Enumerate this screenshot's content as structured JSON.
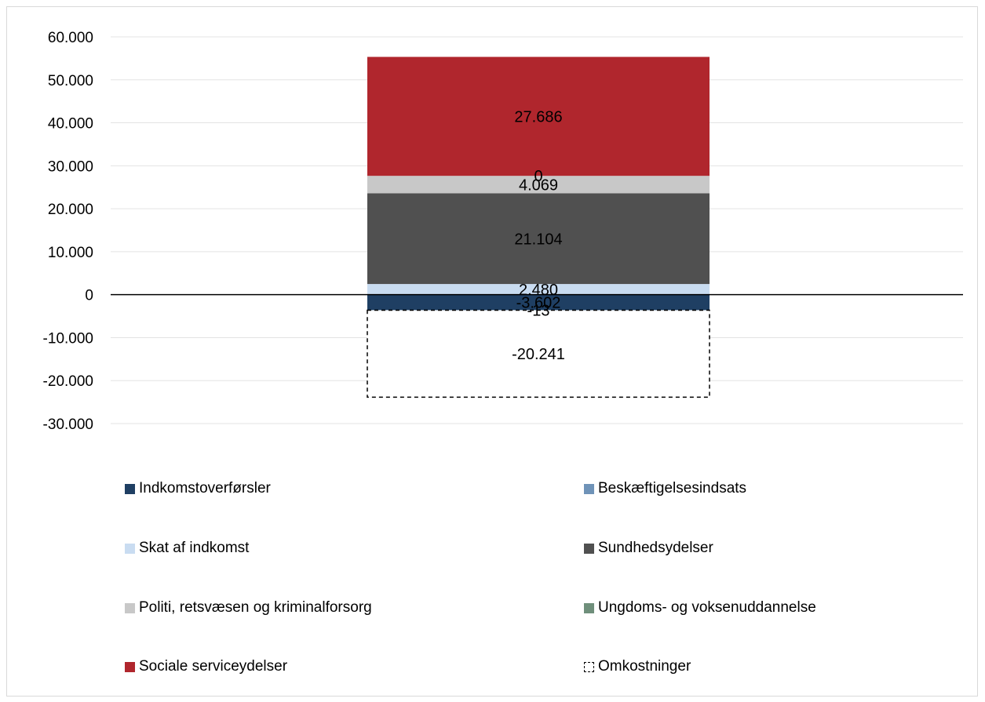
{
  "chart_data": {
    "type": "bar",
    "stacked": true,
    "categories": [
      ""
    ],
    "title": "",
    "xlabel": "",
    "ylabel": "",
    "ylim": [
      -30000,
      60000
    ],
    "yticks": [
      60000,
      50000,
      40000,
      30000,
      20000,
      10000,
      0,
      -10000,
      -20000,
      -30000
    ],
    "ytick_labels": [
      "60.000",
      "50.000",
      "40.000",
      "30.000",
      "20.000",
      "10.000",
      "0",
      "-10.000",
      "-20.000",
      "-30.000"
    ],
    "grid": true,
    "legend_position": "bottom",
    "series": [
      {
        "name": "Indkomstoverførsler",
        "values": [
          -3602
        ],
        "label": "-3.602",
        "color": "#1f3f63"
      },
      {
        "name": "Beskæftigelsesindsats",
        "values": [
          -13
        ],
        "label": "-13",
        "color": "#6f93b8"
      },
      {
        "name": "Skat af indkomst",
        "values": [
          2480
        ],
        "label": "2.480",
        "color": "#c9dcf1"
      },
      {
        "name": "Sundhedsydelser",
        "values": [
          21104
        ],
        "label": "21.104",
        "color": "#505050"
      },
      {
        "name": "Politi, retsvæsen og kriminalforsorg",
        "values": [
          4069
        ],
        "label": "4.069",
        "color": "#c8c8c8"
      },
      {
        "name": "Ungdoms- og voksenuddannelse",
        "values": [
          0
        ],
        "label": "0",
        "color": "#6f8f7b"
      },
      {
        "name": "Sociale serviceydelser",
        "values": [
          27686
        ],
        "label": "27.686",
        "color": "#b0262d"
      },
      {
        "name": "Omkostninger",
        "values": [
          -20241
        ],
        "label": "-20.241",
        "color": "#ffffff",
        "dashed": true
      }
    ]
  }
}
